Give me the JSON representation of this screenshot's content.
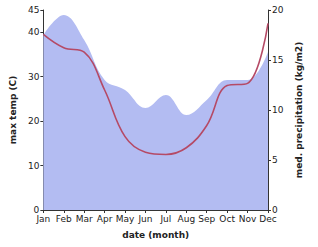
{
  "chart_data": {
    "type": "line",
    "categories": [
      "Jan",
      "Feb",
      "Mar",
      "Apr",
      "May",
      "Jun",
      "Jul",
      "Aug",
      "Sep",
      "Oct",
      "Nov",
      "Dec"
    ],
    "x_label": "date (month)",
    "y_label": "max temp (C)",
    "y2_label": "med. precipitation (kg/m2)",
    "ylim": [
      0,
      45
    ],
    "yticks": [
      0,
      10,
      20,
      30,
      40
    ],
    "y2lim": [
      0,
      20
    ],
    "y2ticks": [
      0,
      5,
      10,
      15,
      20
    ],
    "grid": false,
    "series": [
      {
        "name": "med. precipitation",
        "type": "area",
        "axis": "y2",
        "color": "#b3bcf2",
        "values": [
          17.5,
          19.5,
          17,
          13,
          12,
          10.2,
          11.5,
          9.5,
          11,
          13,
          13,
          15.8
        ]
      },
      {
        "name": "max temp",
        "type": "line",
        "color": "#b54a66",
        "values": [
          39.5,
          36.5,
          35.5,
          27,
          16.5,
          13,
          12.5,
          14,
          19,
          28,
          28.5,
          42
        ]
      }
    ]
  }
}
